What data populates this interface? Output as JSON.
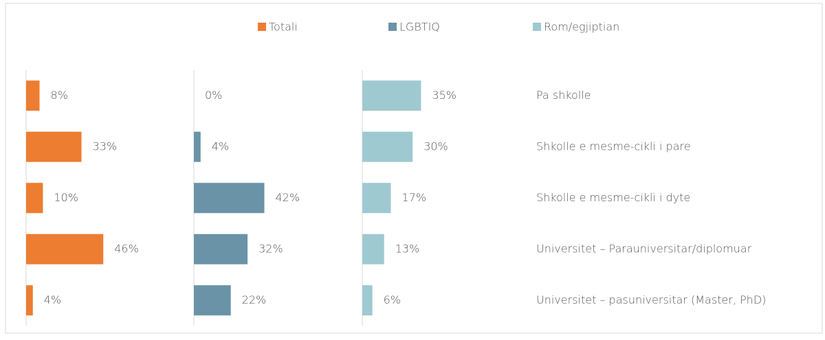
{
  "chart_data": {
    "type": "bar",
    "orientation": "horizontal",
    "categories": [
      "Pa shkolle",
      "Shkolle e mesme-cikli i pare",
      "Shkolle e mesme-cikli i dyte",
      "Universitet – Parauniversitar/diplomuar",
      "Universitet – pasuniversitar (Master, PhD)"
    ],
    "series": [
      {
        "name": "Totali",
        "color": "#ed7d31",
        "values": [
          8,
          33,
          10,
          46,
          4
        ],
        "value_labels": [
          "8%",
          "33%",
          "10%",
          "46%",
          "4%"
        ]
      },
      {
        "name": "LGBTIQ",
        "color": "#6a93a8",
        "values": [
          0,
          4,
          42,
          32,
          22
        ],
        "value_labels": [
          "0%",
          "4%",
          "42%",
          "32%",
          "22%"
        ]
      },
      {
        "name": "Rom/egjiptian",
        "color": "#9fc9d0",
        "values": [
          35,
          30,
          17,
          13,
          6
        ],
        "value_labels": [
          "35%",
          "30%",
          "17%",
          "13%",
          "6%"
        ]
      }
    ],
    "xlim": [
      0,
      50
    ],
    "legend": "top"
  }
}
